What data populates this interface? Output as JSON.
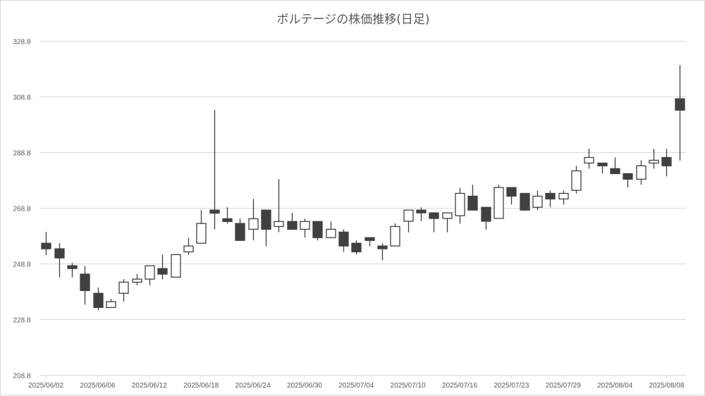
{
  "chart_data": {
    "type": "candlestick",
    "title": "ボルテージの株価推移(日足)",
    "xlabel": "",
    "ylabel": "",
    "ylim": [
      208.8,
      328.8
    ],
    "yticks": [
      "208.8",
      "228.8",
      "248.8",
      "268.8",
      "288.8",
      "308.8",
      "328.8"
    ],
    "xtick_labels": [
      "2025/06/02",
      "2025/06/06",
      "2025/06/12",
      "2025/06/18",
      "2025/06/24",
      "2025/06/30",
      "2025/07/04",
      "2025/07/10",
      "2025/07/16",
      "2025/07/23",
      "2025/07/29",
      "2025/08/04",
      "2025/08/08"
    ],
    "grid": true,
    "legend": "none",
    "colors": {
      "down": "#404040",
      "up": "#ffffff",
      "outline": "#404040",
      "grid": "#d9d9d9"
    },
    "dates": [
      "2025/06/02",
      "2025/06/03",
      "2025/06/04",
      "2025/06/05",
      "2025/06/06",
      "2025/06/09",
      "2025/06/10",
      "2025/06/11",
      "2025/06/12",
      "2025/06/13",
      "2025/06/16",
      "2025/06/17",
      "2025/06/18",
      "2025/06/19",
      "2025/06/20",
      "2025/06/23",
      "2025/06/24",
      "2025/06/25",
      "2025/06/26",
      "2025/06/27",
      "2025/06/30",
      "2025/07/01",
      "2025/07/02",
      "2025/07/03",
      "2025/07/04",
      "2025/07/07",
      "2025/07/08",
      "2025/07/09",
      "2025/07/10",
      "2025/07/11",
      "2025/07/14",
      "2025/07/15",
      "2025/07/16",
      "2025/07/17",
      "2025/07/18",
      "2025/07/22",
      "2025/07/23",
      "2025/07/24",
      "2025/07/25",
      "2025/07/28",
      "2025/07/29",
      "2025/07/30",
      "2025/07/31",
      "2025/08/01",
      "2025/08/04",
      "2025/08/05",
      "2025/08/06",
      "2025/08/07",
      "2025/08/08",
      "2025/08/12"
    ],
    "ohlc": [
      [
        256.1,
        260.2,
        251.8,
        254.1
      ],
      [
        254.1,
        256.1,
        243.8,
        250.8
      ],
      [
        248.0,
        249.0,
        243.8,
        247.0
      ],
      [
        245.0,
        247.9,
        234.0,
        239.1
      ],
      [
        238.1,
        240.2,
        232.0,
        233.0
      ],
      [
        233.0,
        236.1,
        233.0,
        235.1
      ],
      [
        238.1,
        243.2,
        235.1,
        242.1
      ],
      [
        242.1,
        245.0,
        241.0,
        243.2
      ],
      [
        243.2,
        248.0,
        241.0,
        248.0
      ],
      [
        247.0,
        252.0,
        243.1,
        245.0
      ],
      [
        243.9,
        252.0,
        243.9,
        252.0
      ],
      [
        253.0,
        258.1,
        251.9,
        255.1
      ],
      [
        256.1,
        268.0,
        256.1,
        263.2
      ],
      [
        268.0,
        304.0,
        261.1,
        266.9
      ],
      [
        264.9,
        269.0,
        263.1,
        263.9
      ],
      [
        263.2,
        264.9,
        257.1,
        257.1
      ],
      [
        261.1,
        272.0,
        257.1,
        264.9
      ],
      [
        268.0,
        268.0,
        255.0,
        261.1
      ],
      [
        262.1,
        279.1,
        260.1,
        263.9
      ],
      [
        263.9,
        267.0,
        261.1,
        261.1
      ],
      [
        261.1,
        264.9,
        258.1,
        263.9
      ],
      [
        263.9,
        263.9,
        257.1,
        258.1
      ],
      [
        258.1,
        263.9,
        258.1,
        261.1
      ],
      [
        260.1,
        261.1,
        253.0,
        255.1
      ],
      [
        256.1,
        257.1,
        252.0,
        253.0
      ],
      [
        258.1,
        258.1,
        255.0,
        257.1
      ],
      [
        255.1,
        256.1,
        250.0,
        254.1
      ],
      [
        255.1,
        263.2,
        255.1,
        262.1
      ],
      [
        264.0,
        268.0,
        260.0,
        268.0
      ],
      [
        268.0,
        269.0,
        264.0,
        267.0
      ],
      [
        267.0,
        267.0,
        260.0,
        265.0
      ],
      [
        265.0,
        267.0,
        260.0,
        267.0
      ],
      [
        266.0,
        276.0,
        263.1,
        274.0
      ],
      [
        273.0,
        277.1,
        268.0,
        268.0
      ],
      [
        269.0,
        269.0,
        261.0,
        264.0
      ],
      [
        265.0,
        277.1,
        265.0,
        276.1
      ],
      [
        276.1,
        276.1,
        270.0,
        273.0
      ],
      [
        274.0,
        274.0,
        268.0,
        268.0
      ],
      [
        269.0,
        275.0,
        268.0,
        273.0
      ],
      [
        274.0,
        275.0,
        269.0,
        272.0
      ],
      [
        272.0,
        275.0,
        270.0,
        274.0
      ],
      [
        275.1,
        283.9,
        274.0,
        282.1
      ],
      [
        284.9,
        290.0,
        282.9,
        286.9
      ],
      [
        284.9,
        284.9,
        281.1,
        283.9
      ],
      [
        282.9,
        286.9,
        281.1,
        281.1
      ],
      [
        281.1,
        281.1,
        276.1,
        279.1
      ],
      [
        279.1,
        285.9,
        277.1,
        283.9
      ],
      [
        284.9,
        290.0,
        282.9,
        285.9
      ],
      [
        286.9,
        290.0,
        280.1,
        283.9
      ],
      [
        308.0,
        320.1,
        285.8,
        303.9
      ]
    ]
  }
}
